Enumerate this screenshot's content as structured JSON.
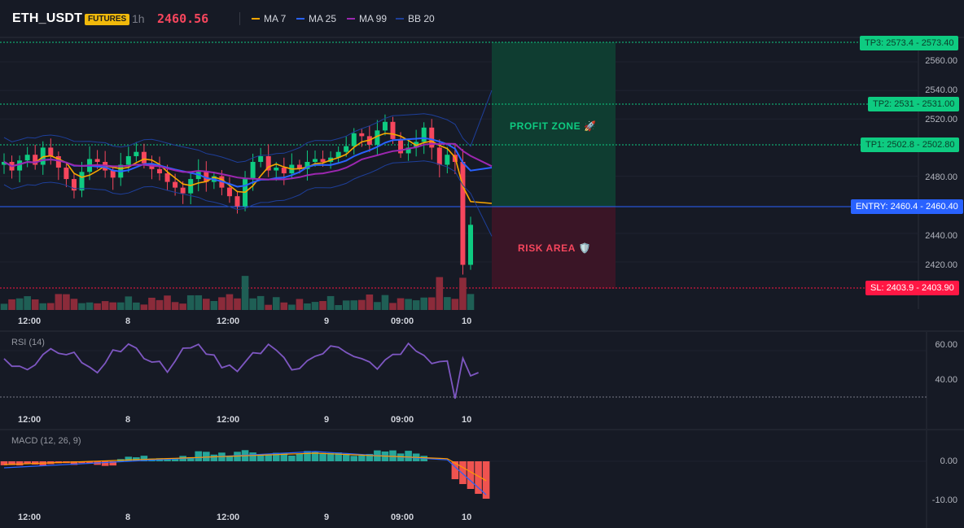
{
  "header": {
    "symbol": "ETH_USDT",
    "badge": "FUTURES",
    "timeframe": "1h",
    "last_price": "2460.56",
    "legend": [
      {
        "label": "MA 7",
        "color": "#f7a600"
      },
      {
        "label": "MA 25",
        "color": "#2962ff"
      },
      {
        "label": "MA 99",
        "color": "#9c27b0"
      },
      {
        "label": "BB 20",
        "color": "#1e3f9a"
      }
    ]
  },
  "main_chart": {
    "y_ticks": [
      "2560.00",
      "2540.00",
      "2520.00",
      "2480.00",
      "2440.00",
      "2420.00"
    ],
    "x_ticks": [
      "12:00",
      "8",
      "12:00",
      "9",
      "09:00",
      "10"
    ],
    "price_tags": {
      "tp3": {
        "label": "TP3: 2573.4",
        "value": "2573.40"
      },
      "tp2": {
        "label": "TP2: 2531",
        "value": "2531.00"
      },
      "tp1": {
        "label": "TP1: 2502.8",
        "value": "2502.80"
      },
      "entry": {
        "label": "ENTRY: 2460.4",
        "value": "2460.40"
      },
      "sl": {
        "label": "SL: 2403.9",
        "value": "2403.90"
      }
    },
    "profit_zone_label": "PROFIT ZONE 🚀",
    "risk_area_label": "RISK AREA 🛡️",
    "colors": {
      "up": "#26a69a",
      "up_bright": "#0ecb81",
      "down": "#f6465d",
      "tp": "#0ecb81",
      "entry": "#2962ff",
      "sl": "#ff1744"
    }
  },
  "rsi_panel": {
    "title": "RSI (14)",
    "y_ticks": [
      "60.00",
      "40.00"
    ],
    "x_ticks": [
      "12:00",
      "8",
      "12:00",
      "9",
      "09:00",
      "10"
    ],
    "line_color": "#7e57c2"
  },
  "macd_panel": {
    "title": "MACD (12, 26, 9)",
    "y_ticks": [
      "0.00",
      "-10.00"
    ],
    "x_ticks": [
      "12:00",
      "8",
      "12:00",
      "9",
      "09:00",
      "10"
    ]
  }
}
